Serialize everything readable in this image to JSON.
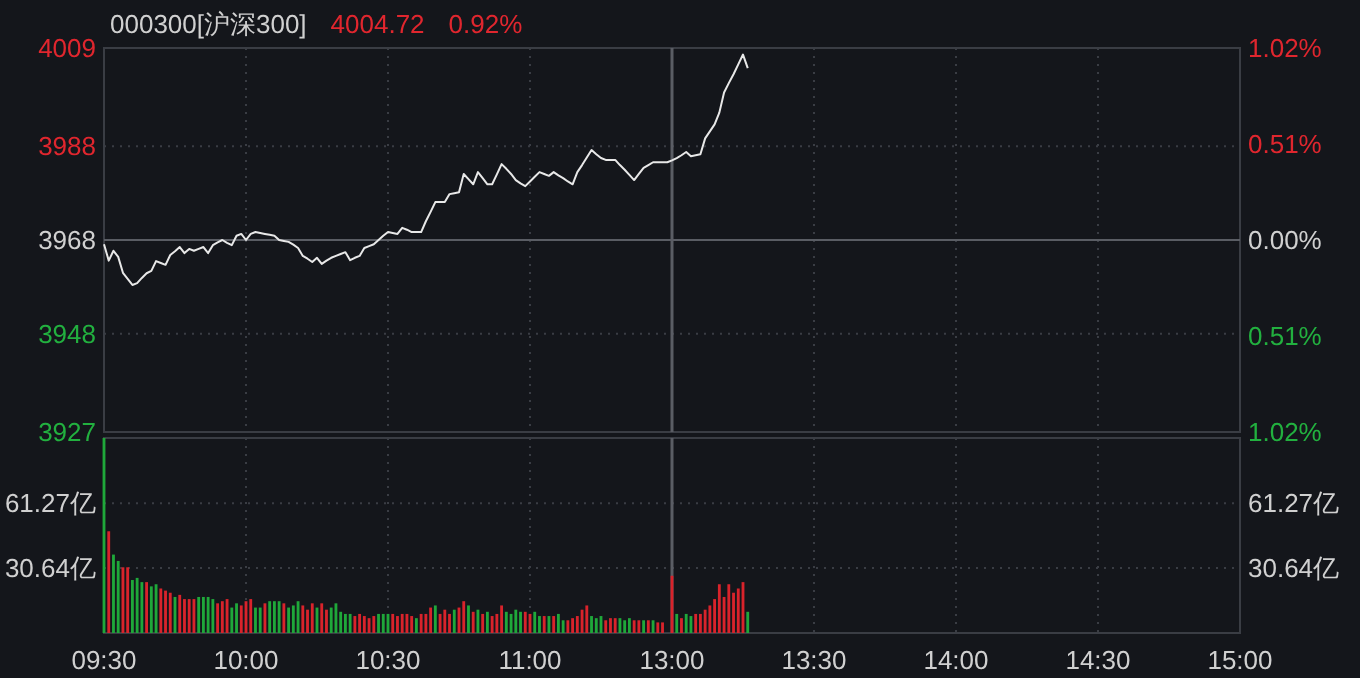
{
  "chart_data": [
    {
      "type": "line",
      "title": "000300[沪深300]",
      "annotations": [
        "4004.72",
        "0.92%"
      ],
      "categories": [
        "09:30",
        null,
        null,
        null,
        null,
        null,
        null,
        null,
        null,
        null,
        null,
        null,
        null,
        null,
        null,
        null,
        null,
        null,
        null,
        null,
        null,
        null,
        null,
        null,
        null,
        null,
        null,
        null,
        null,
        null,
        "10:00",
        null,
        null,
        null,
        null,
        null,
        null,
        null,
        null,
        null,
        null,
        null,
        null,
        null,
        null,
        null,
        null,
        null,
        null,
        null,
        null,
        null,
        null,
        null,
        null,
        null,
        null,
        null,
        null,
        null,
        "10:30",
        null,
        null,
        null,
        null,
        null,
        null,
        null,
        null,
        null,
        null,
        null,
        null,
        null,
        null,
        null,
        null,
        null,
        null,
        null,
        null,
        null,
        null,
        null,
        null,
        null,
        null,
        null,
        null,
        null,
        "11:00",
        null,
        null,
        null,
        null,
        null,
        null,
        null,
        null,
        null,
        null,
        null,
        null,
        null,
        null,
        null,
        null,
        null,
        null,
        null,
        null,
        null,
        null,
        null,
        null,
        null,
        null,
        null,
        null,
        null,
        "13:00",
        null,
        null,
        null,
        null,
        null,
        null,
        null,
        null,
        null,
        null,
        null,
        null,
        null,
        null,
        null,
        null,
        null,
        null,
        null,
        null,
        null,
        null,
        null,
        null,
        null,
        null,
        null,
        null,
        null,
        "13:30",
        null,
        null,
        null,
        null,
        null,
        null,
        null,
        null,
        null,
        null,
        null,
        null,
        null,
        null,
        null,
        null,
        null,
        null,
        null,
        null,
        null,
        null,
        null,
        null,
        null,
        null,
        null,
        null,
        null,
        "14:00",
        null,
        null,
        null,
        null,
        null,
        null,
        null,
        null,
        null,
        null,
        null,
        null,
        null,
        null,
        null,
        null,
        null,
        null,
        null,
        null,
        null,
        null,
        null,
        null,
        null,
        null,
        null,
        null,
        null,
        "14:30",
        null,
        null,
        null,
        null,
        null,
        null,
        null,
        null,
        null,
        null,
        null,
        null,
        null,
        null,
        null,
        null,
        null,
        null,
        null,
        null,
        null,
        null,
        null,
        null,
        null,
        null,
        null,
        null,
        null,
        "15:00"
      ],
      "values": [
        3967.1,
        3963.6,
        3965.7,
        3964.4,
        3961.0,
        3959.7,
        3958.4,
        3958.8,
        3959.9,
        3960.9,
        3961.4,
        3963.5,
        3963.1,
        3962.7,
        3964.8,
        3965.6,
        3966.5,
        3965.2,
        3966.1,
        3965.7,
        3966.1,
        3966.5,
        3965.2,
        3966.9,
        3967.5,
        3968.0,
        3967.4,
        3966.9,
        3968.9,
        3969.3,
        3968.0,
        3969.3,
        3969.7,
        3969.5,
        3969.3,
        3969.1,
        3968.9,
        3968.0,
        3967.8,
        3967.6,
        3967.0,
        3966.3,
        3964.6,
        3964.0,
        3963.3,
        3964.2,
        3962.9,
        3963.6,
        3964.2,
        3964.6,
        3965.0,
        3965.4,
        3963.7,
        3964.2,
        3964.6,
        3966.3,
        3966.7,
        3967.1,
        3968.0,
        3968.9,
        3969.7,
        3969.5,
        3969.3,
        3970.6,
        3970.2,
        3969.7,
        3969.7,
        3969.7,
        3972.0,
        3974.0,
        3976.1,
        3976.1,
        3976.1,
        3977.8,
        3978.0,
        3978.2,
        3982.1,
        3981.0,
        3979.9,
        3982.5,
        3981.2,
        3979.9,
        3979.9,
        3982.0,
        3984.2,
        3983.2,
        3982.1,
        3980.8,
        3980.1,
        3979.5,
        3980.5,
        3981.5,
        3982.5,
        3982.1,
        3981.7,
        3982.5,
        3981.8,
        3981.2,
        3980.5,
        3979.9,
        3982.5,
        3984.0,
        3985.6,
        3987.2,
        3986.3,
        3985.5,
        3985.1,
        3985.1,
        3985.1,
        3984.0,
        3983.0,
        3981.9,
        3980.8,
        3982.1,
        3983.4,
        3984.0,
        3984.6,
        3984.6,
        3984.6,
        3984.6,
        3985.0,
        3985.5,
        3986.1,
        3986.8,
        3985.9,
        3986.1,
        3986.3,
        3989.7,
        3991.2,
        3992.7,
        3995.2,
        3999.5,
        4001.5,
        4003.4,
        4005.5,
        4007.6,
        4004.7,
        null,
        null,
        null,
        null,
        null,
        null,
        null,
        null,
        null,
        null,
        null,
        null,
        null,
        null,
        null,
        null,
        null,
        null,
        null,
        null,
        null,
        null,
        null,
        null,
        null,
        null,
        null,
        null,
        null,
        null,
        null,
        null,
        null,
        null,
        null,
        null,
        null,
        null,
        null,
        null,
        null,
        null,
        null,
        null,
        null,
        null,
        null,
        null,
        null,
        null,
        null,
        null,
        null,
        null,
        null,
        null,
        null,
        null,
        null,
        null,
        null,
        null,
        null,
        null,
        null,
        null,
        null,
        null,
        null,
        null,
        null,
        null,
        null,
        null,
        null,
        null,
        null,
        null,
        null,
        null,
        null,
        null,
        null,
        null,
        null,
        null,
        null,
        null,
        null,
        null,
        null,
        null,
        null,
        null,
        null,
        null,
        null,
        null,
        null,
        null,
        null,
        null,
        null,
        null
      ],
      "color": "#e8e8e8",
      "ylim": [
        3927,
        4009
      ],
      "yticks": [
        3927,
        3948,
        3968,
        3988,
        4009
      ],
      "y2lim": [
        -1.02,
        1.02
      ],
      "y2ticks": [
        {
          "value": -1.02,
          "label": "1.02%"
        },
        {
          "value": -0.51,
          "label": "0.51%"
        },
        {
          "value": 0,
          "label": "0.00%"
        },
        {
          "value": 0.51,
          "label": "0.51%"
        },
        {
          "value": 1.02,
          "label": "1.02%"
        }
      ],
      "grid": true,
      "tick_labels": "y",
      "ref_lines": [
        {
          "axis": "y",
          "value": 3968,
          "color": "#5a5d64"
        },
        {
          "axis": "x",
          "value": "13:00",
          "color": "#5a5d64"
        }
      ]
    },
    {
      "type": "bar",
      "categories": [
        "09:30",
        null,
        null,
        null,
        null,
        null,
        null,
        null,
        null,
        null,
        null,
        null,
        null,
        null,
        null,
        null,
        null,
        null,
        null,
        null,
        null,
        null,
        null,
        null,
        null,
        null,
        null,
        null,
        null,
        null,
        "10:00",
        null,
        null,
        null,
        null,
        null,
        null,
        null,
        null,
        null,
        null,
        null,
        null,
        null,
        null,
        null,
        null,
        null,
        null,
        null,
        null,
        null,
        null,
        null,
        null,
        null,
        null,
        null,
        null,
        null,
        "10:30",
        null,
        null,
        null,
        null,
        null,
        null,
        null,
        null,
        null,
        null,
        null,
        null,
        null,
        null,
        null,
        null,
        null,
        null,
        null,
        null,
        null,
        null,
        null,
        null,
        null,
        null,
        null,
        null,
        null,
        "11:00",
        null,
        null,
        null,
        null,
        null,
        null,
        null,
        null,
        null,
        null,
        null,
        null,
        null,
        null,
        null,
        null,
        null,
        null,
        null,
        null,
        null,
        null,
        null,
        null,
        null,
        null,
        null,
        null,
        null,
        "13:00",
        null,
        null,
        null,
        null,
        null,
        null,
        null,
        null,
        null,
        null,
        null,
        null,
        null,
        null,
        null,
        null,
        null,
        null,
        null,
        null,
        null,
        null,
        null,
        null,
        null,
        null,
        null,
        null,
        null,
        "13:30",
        null,
        null,
        null,
        null,
        null,
        null,
        null,
        null,
        null,
        null,
        null,
        null,
        null,
        null,
        null,
        null,
        null,
        null,
        null,
        null,
        null,
        null,
        null,
        null,
        null,
        null,
        null,
        null,
        null,
        "14:00",
        null,
        null,
        null,
        null,
        null,
        null,
        null,
        null,
        null,
        null,
        null,
        null,
        null,
        null,
        null,
        null,
        null,
        null,
        null,
        null,
        null,
        null,
        null,
        null,
        null,
        null,
        null,
        null,
        null,
        "14:30",
        null,
        null,
        null,
        null,
        null,
        null,
        null,
        null,
        null,
        null,
        null,
        null,
        null,
        null,
        null,
        null,
        null,
        null,
        null,
        null,
        null,
        null,
        null,
        null,
        null,
        null,
        null,
        null,
        null,
        "15:00"
      ],
      "values": [
        92,
        48,
        37,
        34,
        31,
        31,
        25,
        26,
        24,
        24,
        22,
        23,
        21,
        20,
        19,
        17,
        18,
        16,
        16,
        16,
        17,
        17,
        17,
        16,
        14,
        15,
        16,
        12,
        14,
        13,
        15,
        16,
        12,
        12,
        14,
        15,
        15,
        15,
        14,
        12,
        13,
        15,
        13,
        11,
        14,
        12,
        14,
        11,
        12,
        14,
        10,
        9,
        9,
        8,
        9,
        8,
        7,
        8,
        9,
        9,
        9,
        9,
        8,
        9,
        9,
        8,
        7,
        9,
        9,
        12,
        13,
        9,
        11,
        9,
        11,
        12,
        15,
        13,
        10,
        11,
        9,
        10,
        8,
        9,
        13,
        10,
        9,
        11,
        10,
        10,
        9,
        10,
        8,
        8,
        8,
        8,
        9,
        6,
        6,
        7,
        8,
        11,
        13,
        8,
        7,
        8,
        6,
        7,
        7,
        7,
        6,
        7,
        6,
        6,
        6,
        6,
        6,
        5,
        5,
        null,
        27,
        9,
        7,
        9,
        8,
        9,
        9,
        11,
        13,
        16,
        23,
        17,
        23,
        19,
        21,
        24,
        10,
        null,
        null,
        null,
        null,
        null,
        null,
        null,
        null,
        null,
        null,
        null,
        null,
        null,
        null,
        null,
        null,
        null,
        null,
        null,
        null,
        null,
        null,
        null,
        null,
        null,
        null,
        null,
        null,
        null,
        null,
        null,
        null,
        null,
        null,
        null,
        null,
        null,
        null,
        null,
        null,
        null,
        null,
        null,
        null,
        null,
        null,
        null,
        null,
        null,
        null,
        null,
        null,
        null,
        null,
        null,
        null,
        null,
        null,
        null,
        null,
        null,
        null,
        null,
        null,
        null,
        null,
        null,
        null,
        null,
        null,
        null,
        null,
        null,
        null,
        null,
        null,
        null,
        null,
        null,
        null,
        null,
        null,
        null,
        null,
        null,
        null,
        null,
        null,
        null,
        null,
        null,
        null,
        null,
        null,
        null,
        null,
        null,
        null,
        null,
        null,
        null,
        null,
        null,
        null
      ],
      "colors": [
        "#1fa83a",
        "#d9232b",
        "#1fa83a",
        "#1fa83a",
        "#d9232b",
        "#d9232b",
        "#1fa83a",
        "#1fa83a",
        "#1fa83a",
        "#d9232b",
        "#1fa83a",
        "#1fa83a",
        "#d9232b",
        "#d9232b",
        "#d9232b",
        "#1fa83a",
        "#d9232b",
        "#d9232b",
        "#d9232b",
        "#d9232b",
        "#1fa83a",
        "#1fa83a",
        "#1fa83a",
        "#1fa83a",
        "#d9232b",
        "#d9232b",
        "#d9232b",
        "#1fa83a",
        "#1fa83a",
        "#d9232b",
        "#d9232b",
        "#d9232b",
        "#1fa83a",
        "#1fa83a",
        "#d9232b",
        "#1fa83a",
        "#1fa83a",
        "#1fa83a",
        "#d9232b",
        "#1fa83a",
        "#1fa83a",
        "#1fa83a",
        "#d9232b",
        "#d9232b",
        "#d9232b",
        "#1fa83a",
        "#d9232b",
        "#d9232b",
        "#1fa83a",
        "#1fa83a",
        "#1fa83a",
        "#1fa83a",
        "#1fa83a",
        "#d9232b",
        "#d9232b",
        "#d9232b",
        "#d9232b",
        "#d9232b",
        "#1fa83a",
        "#1fa83a",
        "#1fa83a",
        "#d9232b",
        "#d9232b",
        "#d9232b",
        "#d9232b",
        "#d9232b",
        "#1fa83a",
        "#d9232b",
        "#d9232b",
        "#d9232b",
        "#1fa83a",
        "#d9232b",
        "#d9232b",
        "#d9232b",
        "#1fa83a",
        "#d9232b",
        "#d9232b",
        "#1fa83a",
        "#d9232b",
        "#1fa83a",
        "#d9232b",
        "#1fa83a",
        "#d9232b",
        "#d9232b",
        "#d9232b",
        "#1fa83a",
        "#1fa83a",
        "#1fa83a",
        "#1fa83a",
        "#d9232b",
        "#d9232b",
        "#1fa83a",
        "#1fa83a",
        "#d9232b",
        "#1fa83a",
        "#d9232b",
        "#1fa83a",
        "#1fa83a",
        "#d9232b",
        "#d9232b",
        "#d9232b",
        "#d9232b",
        "#d9232b",
        "#1fa83a",
        "#1fa83a",
        "#1fa83a",
        "#d9232b",
        "#d9232b",
        "#d9232b",
        "#1fa83a",
        "#1fa83a",
        "#1fa83a",
        "#d9232b",
        "#d9232b",
        "#1fa83a",
        "#d9232b",
        "#1fa83a",
        "#d9232b",
        "#d9232b",
        null,
        "#d9232b",
        "#1fa83a",
        "#d9232b",
        "#1fa83a",
        "#1fa83a",
        "#d9232b",
        "#d9232b",
        "#d9232b",
        "#d9232b",
        "#d9232b",
        "#d9232b",
        "#d9232b",
        "#d9232b",
        "#d9232b",
        "#d9232b",
        "#d9232b",
        "#1fa83a",
        null,
        null,
        null,
        null,
        null,
        null,
        null,
        null,
        null,
        null,
        null,
        null,
        null,
        null,
        null,
        null,
        null,
        null,
        null,
        null,
        null,
        null,
        null,
        null,
        null,
        null,
        null,
        null,
        null,
        null,
        null,
        null,
        null,
        null,
        null,
        null,
        null,
        null,
        null,
        null,
        null,
        null,
        null,
        null,
        null,
        null,
        null,
        null,
        null,
        null,
        null,
        null,
        null,
        null,
        null,
        null,
        null,
        null,
        null,
        null,
        null,
        null,
        null,
        null,
        null,
        null,
        null,
        null,
        null,
        null,
        null,
        null,
        null,
        null,
        null,
        null,
        null,
        null,
        null,
        null,
        null,
        null,
        null,
        null,
        null,
        null,
        null,
        null,
        null,
        null,
        null,
        null,
        null,
        null,
        null,
        null,
        null,
        null,
        null,
        null,
        null,
        null,
        null,
        null
      ],
      "ylim": [
        0,
        92
      ],
      "yticks": [
        {
          "value": 30.64,
          "label": "30.64亿"
        },
        {
          "value": 61.27,
          "label": "61.27亿"
        }
      ],
      "y2lim": [
        0,
        92
      ],
      "y2ticks": [
        {
          "value": 30.64,
          "label": "30.64亿"
        },
        {
          "value": 61.27,
          "label": "61.27亿"
        }
      ],
      "grid": true,
      "ref_lines": [
        {
          "axis": "x",
          "value": "13:00",
          "color": "#5a5d64"
        }
      ]
    }
  ]
}
